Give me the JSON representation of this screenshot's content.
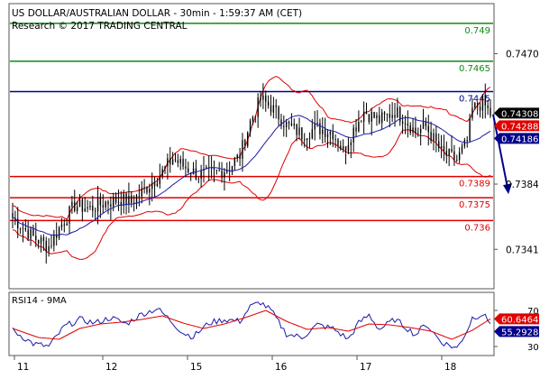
{
  "header": {
    "title": "US DOLLAR/AUSTRALIAN DOLLAR - 30min - 1:59:37 AM (CET)",
    "research": "Research © 2017 TRADING CENTRAL"
  },
  "colors": {
    "candle": "#000000",
    "bollinger": "#e00000",
    "moving_average": "#1a1aa8",
    "resistance_green": "#108a10",
    "resistance_blue": "#00008b",
    "support_red": "#e00000",
    "arrow": "#00008b",
    "rsi": "#1a1aa8",
    "rsi_ma": "#e00000",
    "badge_black": "#000000",
    "badge_red": "#e00000",
    "badge_blue": "#1a1aa8"
  },
  "chart_data": [
    {
      "type": "candlestick",
      "panel": "price",
      "title": "US DOLLAR/AUSTRALIAN DOLLAR - 30min - 1:59:37 AM (CET)",
      "subtitle": "Research © 2017 TRADING CENTRAL",
      "ylim": [
        0.7315,
        0.7503
      ],
      "y_ticks": [
        {
          "value": 0.747,
          "label": "0.7470"
        },
        {
          "value": 0.7384,
          "label": "0.7384"
        },
        {
          "value": 0.7341,
          "label": "0.7341"
        }
      ],
      "x_ticks": [
        "11",
        "12",
        "15",
        "16",
        "17",
        "18"
      ],
      "grid": false,
      "levels": [
        {
          "value": 0.749,
          "label": "0.749",
          "role": "resistance",
          "color": "green"
        },
        {
          "value": 0.7465,
          "label": "0.7465",
          "role": "resistance",
          "color": "green"
        },
        {
          "value": 0.7445,
          "label": "0.7445",
          "role": "pivot",
          "color": "blue"
        },
        {
          "value": 0.7389,
          "label": "0.7389",
          "role": "support",
          "color": "red"
        },
        {
          "value": 0.7375,
          "label": "0.7375",
          "role": "support",
          "color": "red"
        },
        {
          "value": 0.736,
          "label": "0.736",
          "role": "support",
          "color": "red"
        }
      ],
      "value_badges": [
        {
          "value": 0.74308,
          "label": "0.74308",
          "color": "black"
        },
        {
          "value": 0.74288,
          "label": "0.74288",
          "color": "red"
        },
        {
          "value": 0.74186,
          "label": "0.74186",
          "color": "blue"
        }
      ],
      "forecast_arrow": {
        "from": 0.743,
        "to": 0.7378
      },
      "indicators": [
        "bollinger_bands",
        "moving_average"
      ],
      "close_path": [
        [
          0,
          0.7362
        ],
        [
          8,
          0.7349
        ],
        [
          14,
          0.7343
        ],
        [
          18,
          0.7355
        ],
        [
          24,
          0.737
        ],
        [
          30,
          0.7368
        ],
        [
          36,
          0.7372
        ],
        [
          42,
          0.7374
        ],
        [
          46,
          0.7372
        ],
        [
          52,
          0.7382
        ],
        [
          58,
          0.7392
        ],
        [
          62,
          0.7401
        ],
        [
          66,
          0.7396
        ],
        [
          72,
          0.739
        ],
        [
          78,
          0.7391
        ],
        [
          84,
          0.7395
        ],
        [
          88,
          0.7403
        ],
        [
          92,
          0.7425
        ],
        [
          96,
          0.744
        ],
        [
          100,
          0.7435
        ],
        [
          106,
          0.7423
        ],
        [
          112,
          0.7417
        ],
        [
          118,
          0.7421
        ],
        [
          124,
          0.7418
        ],
        [
          128,
          0.7406
        ],
        [
          132,
          0.742
        ],
        [
          136,
          0.7432
        ],
        [
          142,
          0.7426
        ],
        [
          148,
          0.7432
        ],
        [
          152,
          0.7427
        ],
        [
          156,
          0.7418
        ],
        [
          160,
          0.7422
        ],
        [
          166,
          0.7405
        ],
        [
          172,
          0.74
        ],
        [
          176,
          0.7412
        ],
        [
          178,
          0.7433
        ],
        [
          182,
          0.7438
        ],
        [
          185,
          0.743
        ]
      ]
    },
    {
      "type": "line",
      "panel": "oscillator",
      "title": "RSI14 - 9MA",
      "ylim": [
        20,
        90
      ],
      "y_ticks": [
        {
          "value": 70,
          "label": "70"
        },
        {
          "value": 30,
          "label": "30"
        }
      ],
      "value_badges": [
        {
          "value": 60.6464,
          "label": "60.6464",
          "color": "red"
        },
        {
          "value": 55.2928,
          "label": "55.2928",
          "color": "blue"
        }
      ],
      "series": [
        {
          "key": "rsi",
          "values": [
            [
              0,
              48
            ],
            [
              8,
              33
            ],
            [
              14,
              30
            ],
            [
              20,
              52
            ],
            [
              26,
              60
            ],
            [
              32,
              56
            ],
            [
              38,
              62
            ],
            [
              44,
              55
            ],
            [
              50,
              66
            ],
            [
              56,
              72
            ],
            [
              60,
              62
            ],
            [
              66,
              45
            ],
            [
              70,
              41
            ],
            [
              76,
              56
            ],
            [
              82,
              60
            ],
            [
              88,
              58
            ],
            [
              92,
              74
            ],
            [
              96,
              79
            ],
            [
              100,
              70
            ],
            [
              106,
              44
            ],
            [
              112,
              40
            ],
            [
              118,
              54
            ],
            [
              124,
              50
            ],
            [
              130,
              38
            ],
            [
              134,
              56
            ],
            [
              138,
              65
            ],
            [
              142,
              49
            ],
            [
              148,
              60
            ],
            [
              152,
              52
            ],
            [
              156,
              43
            ],
            [
              160,
              55
            ],
            [
              166,
              35
            ],
            [
              172,
              28
            ],
            [
              176,
              48
            ],
            [
              178,
              62
            ],
            [
              182,
              66
            ],
            [
              185,
              55.29
            ]
          ]
        },
        {
          "key": "rsi_ma",
          "values": [
            [
              0,
              50
            ],
            [
              10,
              40
            ],
            [
              18,
              38
            ],
            [
              26,
              50
            ],
            [
              34,
              55
            ],
            [
              42,
              57
            ],
            [
              50,
              60
            ],
            [
              58,
              64
            ],
            [
              66,
              56
            ],
            [
              74,
              50
            ],
            [
              82,
              55
            ],
            [
              90,
              62
            ],
            [
              98,
              70
            ],
            [
              106,
              58
            ],
            [
              114,
              49
            ],
            [
              122,
              51
            ],
            [
              130,
              47
            ],
            [
              138,
              55
            ],
            [
              146,
              54
            ],
            [
              154,
              51
            ],
            [
              162,
              47
            ],
            [
              170,
              38
            ],
            [
              178,
              48
            ],
            [
              185,
              60.65
            ]
          ]
        }
      ]
    }
  ]
}
